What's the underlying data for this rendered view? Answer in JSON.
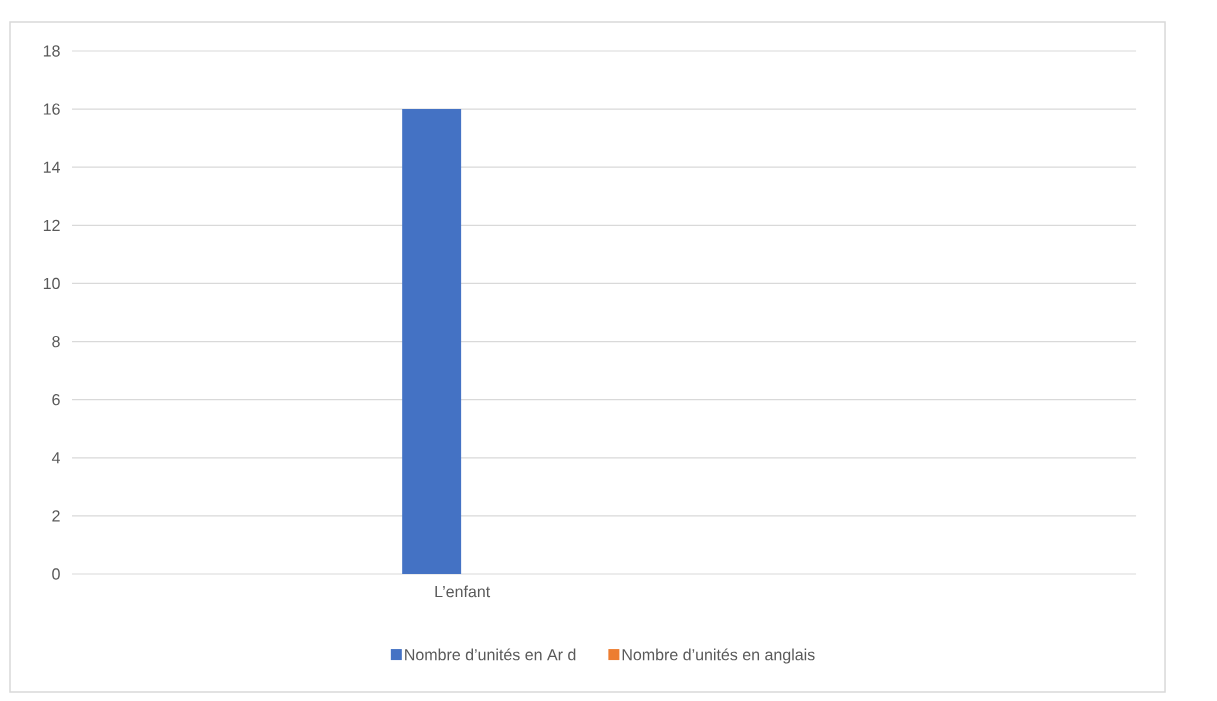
{
  "chart_data": {
    "type": "bar",
    "categories": [
      "L’enfant"
    ],
    "series": [
      {
        "name": "Nombre d’unités en Ar d",
        "color": "#4472c4",
        "values": [
          16
        ]
      },
      {
        "name": "Nombre d’unités en anglais",
        "color": "#ed7d31",
        "values": [
          0
        ]
      }
    ],
    "ylim": [
      0,
      18
    ],
    "yticks": [
      0,
      2,
      4,
      6,
      8,
      10,
      12,
      14,
      16,
      18
    ],
    "grid": "y",
    "legend": "bottom"
  }
}
